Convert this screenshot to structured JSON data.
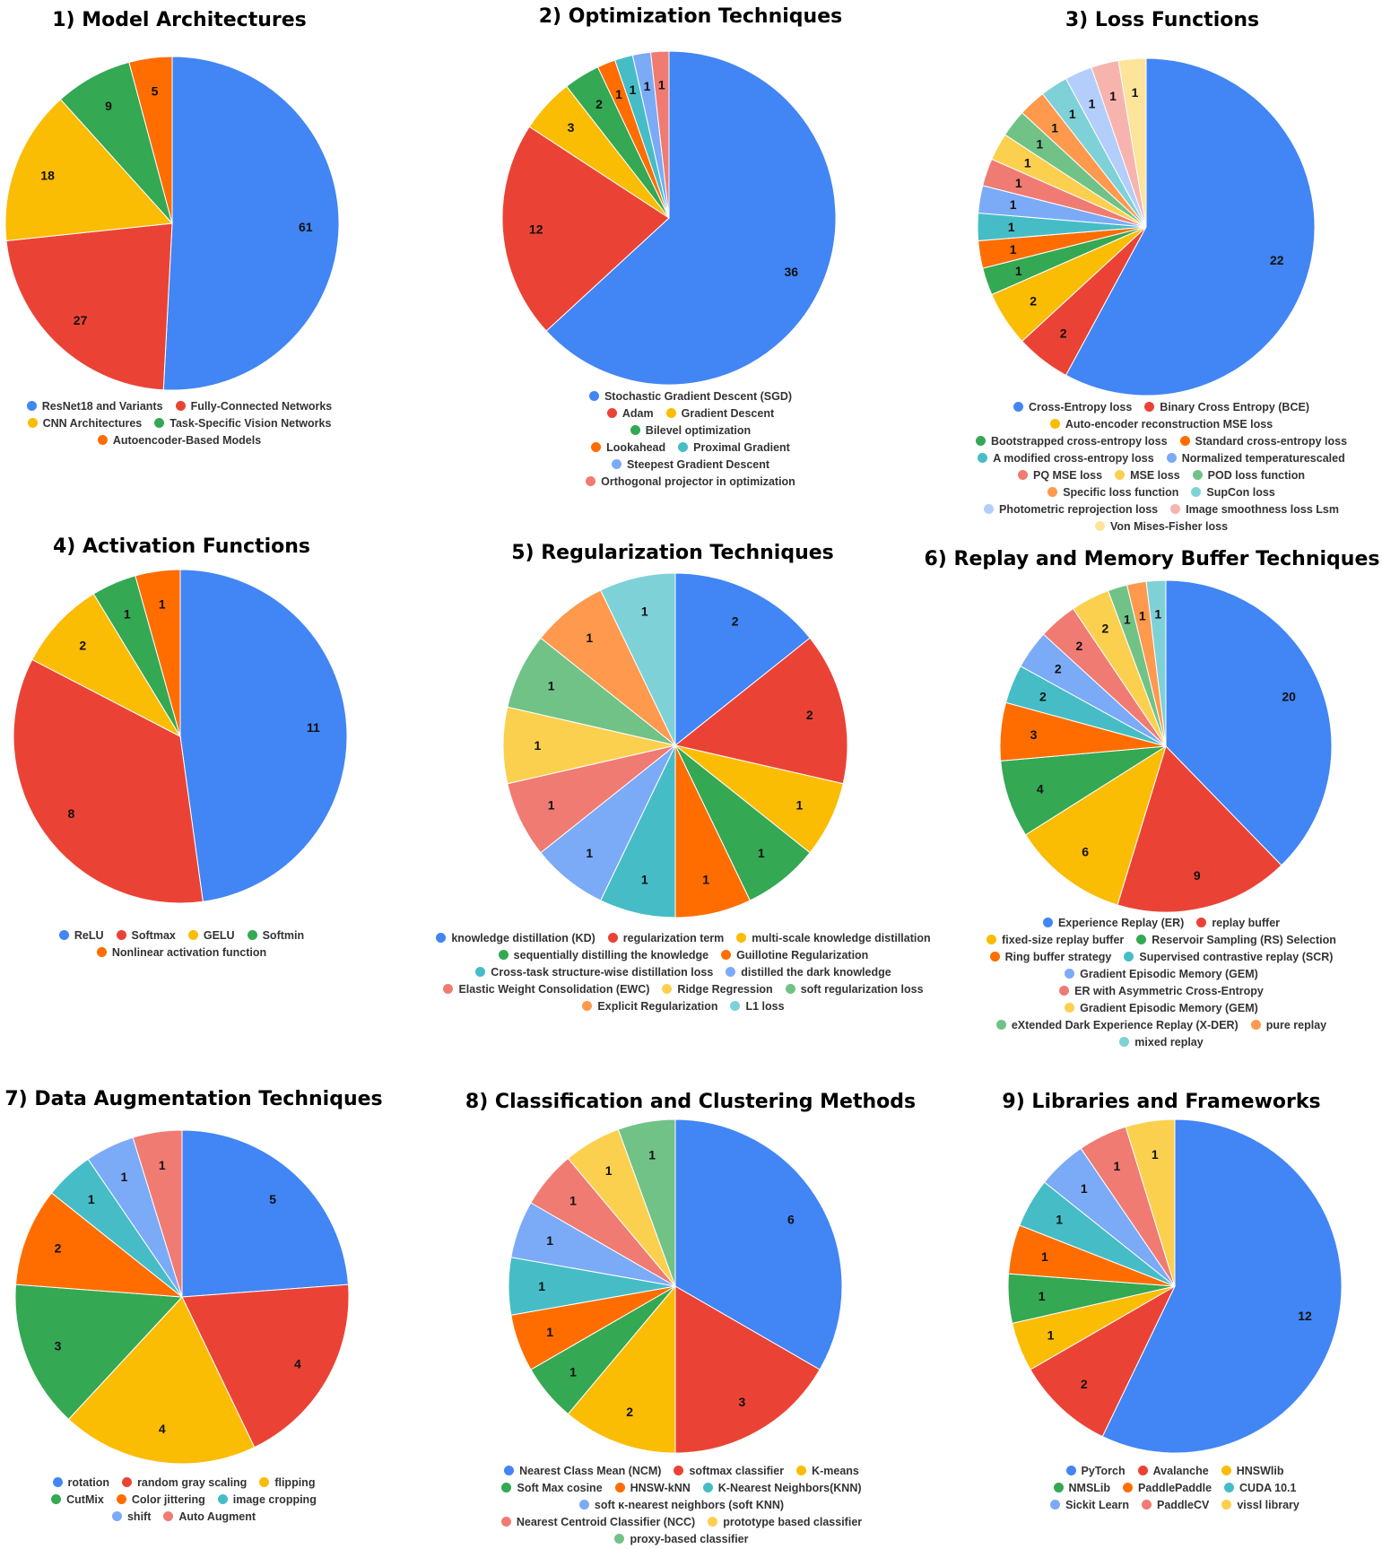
{
  "chart_data": [
    {
      "type": "pie",
      "title": "1) Model Architectures",
      "slices": [
        {
          "label": "ResNet18 and Variants",
          "value": 61,
          "color": "#4285F4"
        },
        {
          "label": "Fully-Connected Networks",
          "value": 27,
          "color": "#EA4335"
        },
        {
          "label": "CNN Architectures",
          "value": 18,
          "color": "#FBBC04"
        },
        {
          "label": "Task-Specific Vision Networks",
          "value": 9,
          "color": "#34A853"
        },
        {
          "label": "Autoencoder-Based Models",
          "value": 5,
          "color": "#FF6D01"
        }
      ],
      "legend_rows": [
        [
          0,
          1
        ],
        [
          2,
          3
        ],
        [
          4
        ]
      ]
    },
    {
      "type": "pie",
      "title": "2) Optimization Techniques",
      "slices": [
        {
          "label": "Stochastic Gradient Descent (SGD)",
          "value": 36,
          "color": "#4285F4"
        },
        {
          "label": "Adam",
          "value": 12,
          "color": "#EA4335"
        },
        {
          "label": "Gradient Descent",
          "value": 3,
          "color": "#FBBC04"
        },
        {
          "label": "Bilevel optimization",
          "value": 2,
          "color": "#34A853"
        },
        {
          "label": "Lookahead",
          "value": 1,
          "color": "#FF6D01"
        },
        {
          "label": "Proximal Gradient",
          "value": 1,
          "color": "#46BDC6"
        },
        {
          "label": "Steepest Gradient Descent",
          "value": 1,
          "color": "#7BAAF7"
        },
        {
          "label": "Orthogonal projector in optimization",
          "value": 1,
          "color": "#F07B72"
        }
      ],
      "legend_rows": [
        [
          0
        ],
        [
          1,
          2
        ],
        [
          3
        ],
        [
          4,
          5
        ],
        [
          6
        ],
        [
          7
        ]
      ]
    },
    {
      "type": "pie",
      "title": "3) Loss Functions",
      "slices": [
        {
          "label": "Cross-Entropy loss",
          "value": 22,
          "color": "#4285F4"
        },
        {
          "label": "Binary Cross Entropy (BCE)",
          "value": 2,
          "color": "#EA4335"
        },
        {
          "label": "Auto-encoder reconstruction MSE loss",
          "value": 2,
          "color": "#FBBC04"
        },
        {
          "label": "Bootstrapped cross-entropy loss",
          "value": 1,
          "color": "#34A853"
        },
        {
          "label": "Standard cross-entropy loss",
          "value": 1,
          "color": "#FF6D01"
        },
        {
          "label": "A modified cross-entropy loss",
          "value": 1,
          "color": "#46BDC6"
        },
        {
          "label": "Normalized temperaturescaled",
          "value": 1,
          "color": "#7BAAF7"
        },
        {
          "label": "PQ MSE loss",
          "value": 1,
          "color": "#F07B72"
        },
        {
          "label": "MSE loss",
          "value": 1,
          "color": "#FCD04F"
        },
        {
          "label": "POD loss function",
          "value": 1,
          "color": "#71C287"
        },
        {
          "label": "Specific loss function",
          "value": 1,
          "color": "#FF994D"
        },
        {
          "label": "SupCon loss",
          "value": 1,
          "color": "#7ED1D7"
        },
        {
          "label": "Photometric reprojection loss",
          "value": 1,
          "color": "#B3CEFB"
        },
        {
          "label": "Image smoothness loss Lsm",
          "value": 1,
          "color": "#F7B4AE"
        },
        {
          "label": "Von Mises-Fisher loss",
          "value": 1,
          "color": "#FDE49B"
        }
      ],
      "legend_rows": [
        [
          0,
          1
        ],
        [
          2
        ],
        [
          3,
          4
        ],
        [
          5,
          6
        ],
        [
          7,
          8,
          9
        ],
        [
          10,
          11
        ],
        [
          12,
          13
        ],
        [
          14
        ]
      ]
    },
    {
      "type": "pie",
      "title": "4) Activation Functions",
      "slices": [
        {
          "label": "ReLU",
          "value": 11,
          "color": "#4285F4"
        },
        {
          "label": "Softmax",
          "value": 8,
          "color": "#EA4335"
        },
        {
          "label": "GELU",
          "value": 2,
          "color": "#FBBC04"
        },
        {
          "label": "Softmin",
          "value": 1,
          "color": "#34A853"
        },
        {
          "label": "Nonlinear activation function",
          "value": 1,
          "color": "#FF6D01"
        }
      ],
      "legend_rows": [
        [
          0,
          1,
          2,
          3
        ],
        [
          4
        ]
      ]
    },
    {
      "type": "pie",
      "title": "5) Regularization Techniques",
      "slices": [
        {
          "label": "knowledge distillation (KD)",
          "value": 2,
          "color": "#4285F4"
        },
        {
          "label": "regularization term",
          "value": 2,
          "color": "#EA4335"
        },
        {
          "label": "multi-scale knowledge distillation",
          "value": 1,
          "color": "#FBBC04"
        },
        {
          "label": "sequentially distilling the knowledge",
          "value": 1,
          "color": "#34A853"
        },
        {
          "label": "Guillotine Regularization",
          "value": 1,
          "color": "#FF6D01"
        },
        {
          "label": "Cross-task structure-wise distillation loss",
          "value": 1,
          "color": "#46BDC6"
        },
        {
          "label": "distilled the dark knowledge",
          "value": 1,
          "color": "#7BAAF7"
        },
        {
          "label": "Elastic Weight Consolidation (EWC)",
          "value": 1,
          "color": "#F07B72"
        },
        {
          "label": "Ridge Regression",
          "value": 1,
          "color": "#FCD04F"
        },
        {
          "label": "soft regularization loss",
          "value": 1,
          "color": "#71C287"
        },
        {
          "label": "Explicit Regularization",
          "value": 1,
          "color": "#FF994D"
        },
        {
          "label": "L1 loss",
          "value": 1,
          "color": "#7ED1D7"
        }
      ],
      "legend_rows": [
        [
          0,
          1,
          2
        ],
        [
          3,
          4
        ],
        [
          5,
          6
        ],
        [
          7,
          8,
          9
        ],
        [
          10,
          11
        ]
      ]
    },
    {
      "type": "pie",
      "title": "6) Replay and Memory Buffer Techniques",
      "slices": [
        {
          "label": "Experience Replay (ER)",
          "value": 20,
          "color": "#4285F4"
        },
        {
          "label": "replay buffer",
          "value": 9,
          "color": "#EA4335"
        },
        {
          "label": "fixed-size replay buffer",
          "value": 6,
          "color": "#FBBC04"
        },
        {
          "label": "Reservoir Sampling (RS) Selection",
          "value": 4,
          "color": "#34A853"
        },
        {
          "label": "Ring buffer strategy",
          "value": 3,
          "color": "#FF6D01"
        },
        {
          "label": "Supervised contrastive replay (SCR)",
          "value": 2,
          "color": "#46BDC6"
        },
        {
          "label": "Gradient Episodic Memory (GEM)",
          "value": 2,
          "color": "#7BAAF7"
        },
        {
          "label": "ER with Asymmetric Cross-Entropy",
          "value": 2,
          "color": "#F07B72"
        },
        {
          "label": "Gradient Episodic Memory (GEM)",
          "value": 2,
          "color": "#FCD04F"
        },
        {
          "label": "eXtended Dark Experience Replay (X-DER)",
          "value": 1,
          "color": "#71C287"
        },
        {
          "label": "pure replay",
          "value": 1,
          "color": "#FF994D"
        },
        {
          "label": "mixed replay",
          "value": 1,
          "color": "#7ED1D7"
        }
      ],
      "legend_rows": [
        [
          0,
          1
        ],
        [
          2,
          3
        ],
        [
          4,
          5
        ],
        [
          6
        ],
        [
          7
        ],
        [
          8
        ],
        [
          9,
          10
        ],
        [
          11
        ]
      ]
    },
    {
      "type": "pie",
      "title": "7) Data Augmentation Techniques",
      "slices": [
        {
          "label": "rotation",
          "value": 5,
          "color": "#4285F4"
        },
        {
          "label": "random gray scaling",
          "value": 4,
          "color": "#EA4335"
        },
        {
          "label": "flipping",
          "value": 4,
          "color": "#FBBC04"
        },
        {
          "label": "CutMix",
          "value": 3,
          "color": "#34A853"
        },
        {
          "label": "Color jittering",
          "value": 2,
          "color": "#FF6D01"
        },
        {
          "label": "image cropping",
          "value": 1,
          "color": "#46BDC6"
        },
        {
          "label": "shift",
          "value": 1,
          "color": "#7BAAF7"
        },
        {
          "label": "Auto Augment",
          "value": 1,
          "color": "#F07B72"
        }
      ],
      "legend_rows": [
        [
          0,
          1,
          2
        ],
        [
          3,
          4,
          5
        ],
        [
          6,
          7
        ]
      ]
    },
    {
      "type": "pie",
      "title": "8) Classification and Clustering Methods",
      "slices": [
        {
          "label": "Nearest Class Mean (NCM)",
          "value": 6,
          "color": "#4285F4"
        },
        {
          "label": "softmax classifier",
          "value": 3,
          "color": "#EA4335"
        },
        {
          "label": "K-means",
          "value": 2,
          "color": "#FBBC04"
        },
        {
          "label": "Soft Max cosine",
          "value": 1,
          "color": "#34A853"
        },
        {
          "label": "HNSW-kNN",
          "value": 1,
          "color": "#FF6D01"
        },
        {
          "label": "K-Nearest Neighbors(KNN)",
          "value": 1,
          "color": "#46BDC6"
        },
        {
          "label": "soft κ-nearest neighbors (soft KNN)",
          "value": 1,
          "color": "#7BAAF7"
        },
        {
          "label": "Nearest Centroid Classifier (NCC)",
          "value": 1,
          "color": "#F07B72"
        },
        {
          "label": "prototype based classifier",
          "value": 1,
          "color": "#FCD04F"
        },
        {
          "label": "proxy-based classifier",
          "value": 1,
          "color": "#71C287"
        }
      ],
      "legend_rows": [
        [
          0,
          1,
          2
        ],
        [
          3,
          4,
          5
        ],
        [
          6
        ],
        [
          7,
          8
        ],
        [
          9
        ]
      ]
    },
    {
      "type": "pie",
      "title": "9) Libraries and Frameworks",
      "slices": [
        {
          "label": "PyTorch",
          "value": 12,
          "color": "#4285F4"
        },
        {
          "label": "Avalanche",
          "value": 2,
          "color": "#EA4335"
        },
        {
          "label": "HNSWlib",
          "value": 1,
          "color": "#FBBC04"
        },
        {
          "label": "NMSLib",
          "value": 1,
          "color": "#34A853"
        },
        {
          "label": "PaddlePaddle",
          "value": 1,
          "color": "#FF6D01"
        },
        {
          "label": "CUDA 10.1",
          "value": 1,
          "color": "#46BDC6"
        },
        {
          "label": "Sickit Learn",
          "value": 1,
          "color": "#7BAAF7"
        },
        {
          "label": "PaddleCV",
          "value": 1,
          "color": "#F07B72"
        },
        {
          "label": "vissl library",
          "value": 1,
          "color": "#FCD04F"
        }
      ],
      "legend_rows": [
        [
          0,
          1,
          2
        ],
        [
          3,
          4,
          5
        ],
        [
          6,
          7,
          8
        ]
      ]
    }
  ]
}
